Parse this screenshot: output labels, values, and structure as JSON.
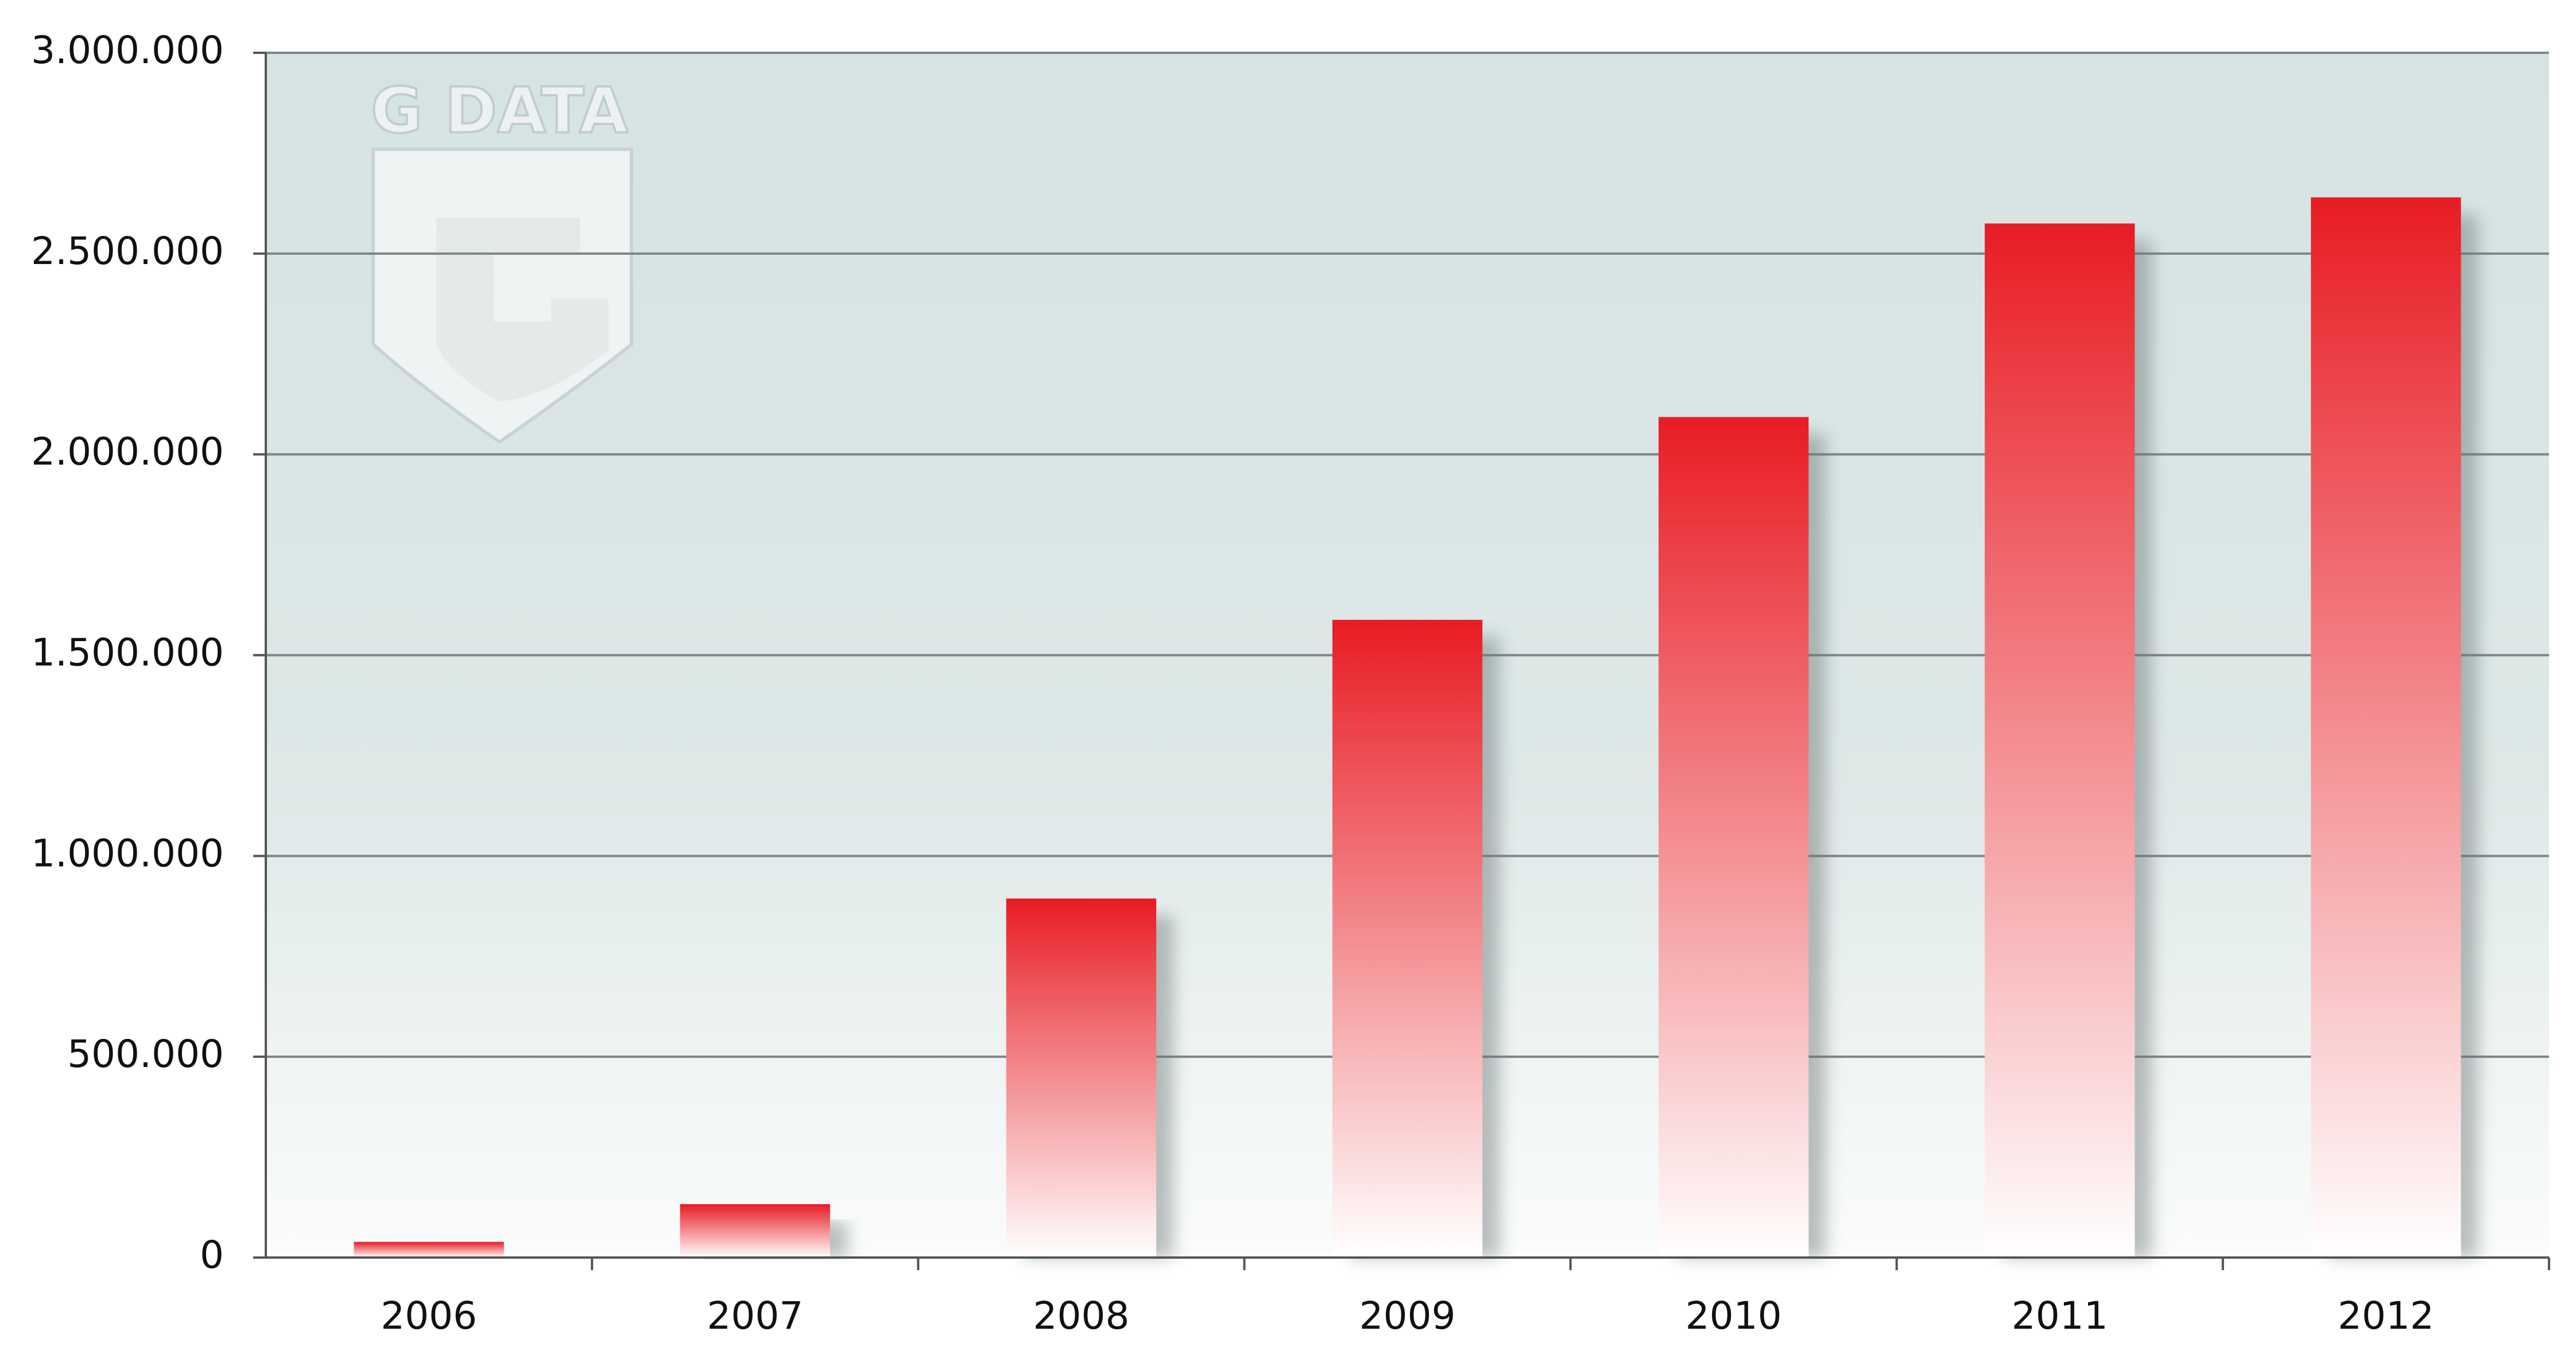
{
  "chart_data": {
    "type": "bar",
    "watermark": "G DATA",
    "categories": [
      "2006",
      "2007",
      "2008",
      "2009",
      "2010",
      "2011",
      "2012"
    ],
    "values": [
      39000,
      133000,
      894000,
      1588000,
      2093000,
      2575000,
      2640000
    ],
    "color": "#e81c24",
    "ylim": [
      0,
      3000000
    ],
    "yticks": [
      0,
      {
        "value": 500000,
        "label": "500.000"
      },
      {
        "value": 1000000,
        "label": "1.000.000"
      },
      {
        "value": 1500000,
        "label": "1.500.000"
      },
      {
        "value": 2000000,
        "label": "2.000.000"
      },
      {
        "value": 2500000,
        "label": "2.500.000"
      },
      {
        "value": 3000000,
        "label": "3.000.000"
      }
    ],
    "grid": true
  }
}
